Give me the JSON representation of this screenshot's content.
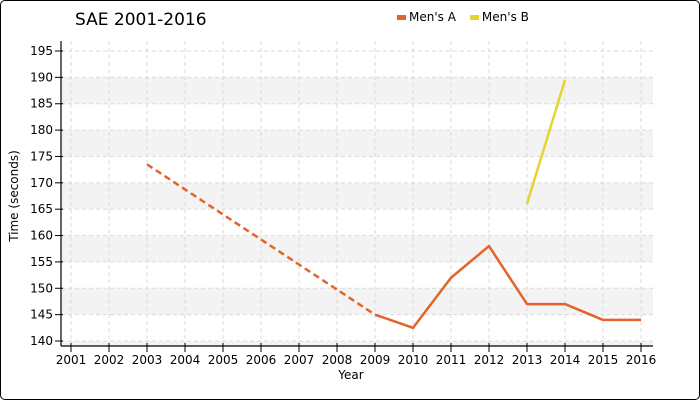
{
  "window": {
    "background": "#ffffff",
    "border_color": "#000000"
  },
  "chart_data": {
    "type": "line",
    "title": "SAE 2001-2016",
    "xlabel": "Year",
    "ylabel": "Time (seconds)",
    "xlim": [
      2001,
      2016
    ],
    "ylim": [
      140,
      195
    ],
    "x_ticks": [
      2001,
      2002,
      2003,
      2004,
      2005,
      2006,
      2007,
      2008,
      2009,
      2010,
      2011,
      2012,
      2013,
      2014,
      2015,
      2016
    ],
    "y_ticks": [
      140,
      145,
      150,
      155,
      160,
      165,
      170,
      175,
      180,
      185,
      190,
      195
    ],
    "grid": true,
    "legend_position": "top",
    "colors": {
      "band_fill": "#f3f3f3",
      "grid_line": "#dbdbdb",
      "axis": "#000000",
      "tick_label": "#000000"
    },
    "series": [
      {
        "name": "Men's A",
        "color": "#e2642c",
        "segments": [
          {
            "style": "dashed",
            "points": [
              [
                2003,
                173.5
              ],
              [
                2009,
                145
              ]
            ]
          },
          {
            "style": "solid",
            "points": [
              [
                2009,
                145
              ],
              [
                2010,
                142.5
              ],
              [
                2011,
                152
              ],
              [
                2012,
                158
              ],
              [
                2013,
                147
              ],
              [
                2014,
                147
              ],
              [
                2015,
                144
              ],
              [
                2016,
                144
              ]
            ]
          }
        ]
      },
      {
        "name": "Men's B",
        "color": "#e3d531",
        "segments": [
          {
            "style": "solid",
            "points": [
              [
                2013,
                166
              ],
              [
                2014,
                189.5
              ]
            ]
          }
        ]
      }
    ]
  }
}
